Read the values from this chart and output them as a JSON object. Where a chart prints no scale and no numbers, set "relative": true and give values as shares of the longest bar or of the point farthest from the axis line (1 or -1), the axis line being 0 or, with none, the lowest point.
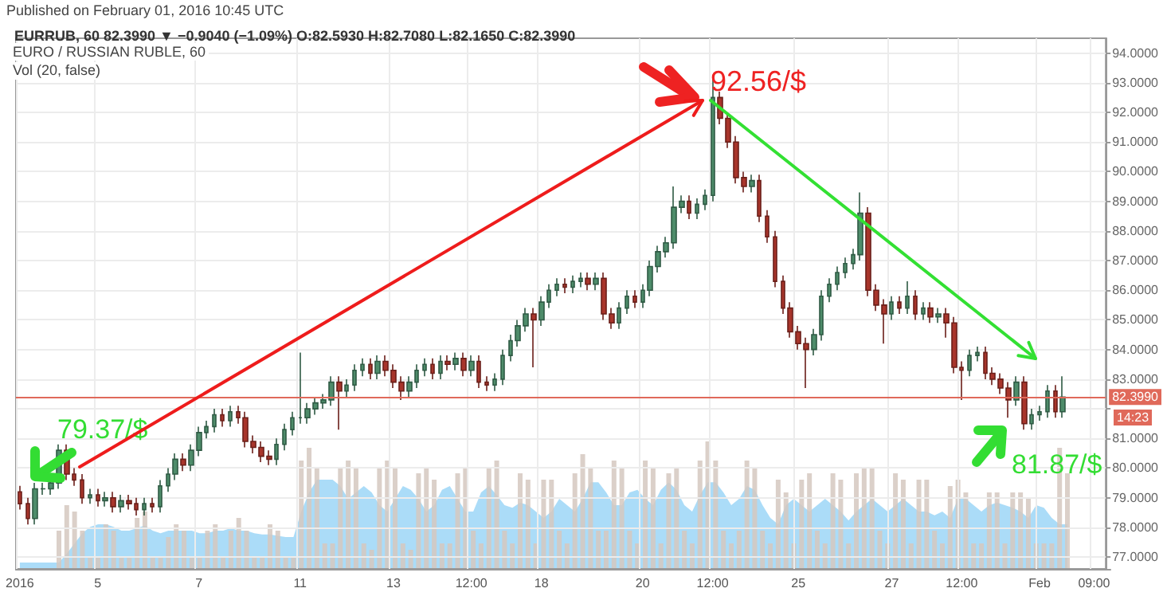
{
  "chart_data": [
    {
      "type": "candlestick",
      "title": "EURRUB, 60 82.3990 ▼ −0.9040 (−1.09%) O:82.5930 H:82.7080 L:82.1650 C:82.3990",
      "subtitle": "EURO / RUSSIAN RUBLE, 60",
      "annotations": [
        "Published on February 01, 2016 10:45 UTC",
        "92.56/$",
        "79.37/$",
        "81.87/$",
        "14:23"
      ],
      "categories": [
        "2016",
        null,
        null,
        null,
        null,
        null,
        null,
        null,
        null,
        null,
        "5",
        null,
        null,
        null,
        null,
        null,
        null,
        null,
        null,
        null,
        null,
        null,
        null,
        "7",
        null,
        null,
        null,
        null,
        null,
        null,
        null,
        null,
        null,
        null,
        null,
        null,
        "11",
        null,
        null,
        null,
        null,
        null,
        null,
        null,
        null,
        null,
        null,
        null,
        "13",
        null,
        null,
        null,
        null,
        null,
        null,
        null,
        null,
        null,
        "12:00",
        null,
        null,
        null,
        null,
        null,
        null,
        null,
        null,
        "18",
        null,
        null,
        null,
        null,
        null,
        null,
        null,
        null,
        null,
        null,
        null,
        null,
        "20",
        null,
        null,
        null,
        null,
        null,
        null,
        null,
        null,
        "12:00",
        null,
        null,
        null,
        null,
        null,
        null,
        null,
        null,
        null,
        null,
        "25",
        null,
        null,
        null,
        null,
        null,
        null,
        null,
        null,
        null,
        null,
        null,
        "27",
        null,
        null,
        null,
        null,
        null,
        null,
        null,
        null,
        "12:00",
        null,
        null,
        null,
        null,
        null,
        null,
        null,
        null,
        null,
        "Feb",
        null,
        null,
        null,
        null,
        null,
        null,
        "09:00",
        null
      ],
      "ohlc": [
        [
          79.2,
          79.4,
          78.6,
          78.8
        ],
        [
          78.8,
          79.0,
          78.1,
          78.3
        ],
        [
          78.3,
          79.5,
          78.1,
          79.3
        ],
        [
          79.3,
          79.5,
          79.1,
          79.3
        ],
        [
          79.3,
          79.7,
          79.1,
          79.5
        ],
        [
          79.5,
          80.8,
          79.3,
          80.6
        ],
        [
          80.6,
          80.8,
          79.6,
          79.8
        ],
        [
          79.8,
          80.0,
          79.4,
          79.6
        ],
        [
          79.6,
          79.8,
          78.8,
          79.0
        ],
        [
          79.0,
          79.3,
          78.8,
          79.1
        ],
        [
          79.1,
          79.3,
          78.7,
          78.9
        ],
        [
          78.9,
          79.2,
          78.7,
          79.0
        ],
        [
          79.0,
          79.2,
          78.5,
          78.7
        ],
        [
          78.7,
          79.1,
          78.5,
          78.9
        ],
        [
          78.9,
          79.1,
          78.6,
          78.8
        ],
        [
          78.8,
          79.0,
          78.4,
          78.6
        ],
        [
          78.6,
          79.0,
          78.4,
          78.8
        ],
        [
          78.8,
          79.0,
          78.5,
          78.7
        ],
        [
          78.7,
          79.6,
          78.5,
          79.4
        ],
        [
          79.4,
          80.0,
          79.2,
          79.8
        ],
        [
          79.8,
          80.5,
          79.6,
          80.3
        ],
        [
          80.3,
          80.5,
          79.9,
          80.1
        ],
        [
          80.1,
          80.8,
          79.9,
          80.6
        ],
        [
          80.6,
          81.4,
          80.4,
          81.2
        ],
        [
          81.2,
          81.6,
          81.0,
          81.4
        ],
        [
          81.4,
          82.0,
          81.2,
          81.8
        ],
        [
          81.8,
          82.0,
          81.4,
          81.6
        ],
        [
          81.6,
          82.1,
          81.4,
          81.9
        ],
        [
          81.9,
          82.1,
          81.5,
          81.7
        ],
        [
          81.7,
          81.9,
          80.7,
          80.9
        ],
        [
          80.9,
          81.1,
          80.5,
          80.7
        ],
        [
          80.7,
          80.9,
          80.2,
          80.4
        ],
        [
          80.4,
          80.6,
          80.1,
          80.3
        ],
        [
          80.3,
          81.0,
          80.1,
          80.8
        ],
        [
          80.8,
          81.5,
          80.6,
          81.3
        ],
        [
          81.3,
          81.9,
          81.1,
          81.7
        ],
        [
          81.7,
          83.9,
          81.5,
          81.7
        ],
        [
          81.7,
          82.2,
          81.5,
          82.0
        ],
        [
          82.0,
          82.4,
          81.8,
          82.2
        ],
        [
          82.2,
          82.5,
          82.0,
          82.3
        ],
        [
          82.3,
          83.1,
          82.1,
          82.9
        ],
        [
          82.9,
          83.1,
          81.3,
          82.6
        ],
        [
          82.6,
          83.0,
          82.4,
          82.8
        ],
        [
          82.8,
          83.5,
          82.6,
          83.3
        ],
        [
          83.3,
          83.7,
          83.1,
          83.5
        ],
        [
          83.5,
          83.7,
          83.0,
          83.2
        ],
        [
          83.2,
          83.8,
          83.0,
          83.6
        ],
        [
          83.6,
          83.8,
          83.1,
          83.3
        ],
        [
          83.3,
          83.5,
          82.7,
          82.9
        ],
        [
          82.9,
          83.1,
          82.3,
          82.6
        ],
        [
          82.6,
          83.1,
          82.4,
          82.9
        ],
        [
          82.9,
          83.5,
          82.7,
          83.3
        ],
        [
          83.3,
          83.7,
          83.1,
          83.5
        ],
        [
          83.5,
          83.7,
          83.0,
          83.2
        ],
        [
          83.2,
          83.8,
          83.0,
          83.6
        ],
        [
          83.6,
          83.8,
          83.3,
          83.5
        ],
        [
          83.5,
          83.9,
          83.3,
          83.7
        ],
        [
          83.7,
          83.9,
          83.1,
          83.3
        ],
        [
          83.3,
          83.8,
          83.1,
          83.6
        ],
        [
          83.6,
          83.8,
          82.7,
          82.9
        ],
        [
          82.9,
          83.1,
          82.6,
          82.8
        ],
        [
          82.8,
          83.2,
          82.6,
          83.0
        ],
        [
          83.0,
          84.0,
          82.8,
          83.8
        ],
        [
          83.8,
          84.5,
          83.6,
          84.3
        ],
        [
          84.3,
          85.0,
          84.1,
          84.8
        ],
        [
          84.8,
          85.4,
          84.6,
          85.2
        ],
        [
          85.2,
          85.4,
          83.4,
          85.0
        ],
        [
          85.0,
          85.8,
          84.8,
          85.6
        ],
        [
          85.6,
          86.2,
          85.4,
          86.0
        ],
        [
          86.0,
          86.4,
          85.8,
          86.2
        ],
        [
          86.2,
          86.4,
          85.9,
          86.1
        ],
        [
          86.1,
          86.5,
          85.9,
          86.3
        ],
        [
          86.3,
          86.6,
          86.1,
          86.4
        ],
        [
          86.4,
          86.6,
          86.0,
          86.2
        ],
        [
          86.2,
          86.6,
          86.0,
          86.4
        ],
        [
          86.4,
          86.6,
          85.0,
          85.2
        ],
        [
          85.2,
          85.4,
          84.7,
          84.9
        ],
        [
          84.9,
          85.6,
          84.7,
          85.4
        ],
        [
          85.4,
          86.0,
          85.2,
          85.8
        ],
        [
          85.8,
          86.0,
          85.4,
          85.6
        ],
        [
          85.6,
          86.2,
          85.4,
          86.0
        ],
        [
          86.0,
          87.0,
          85.8,
          86.8
        ],
        [
          86.8,
          87.5,
          86.6,
          87.3
        ],
        [
          87.3,
          87.8,
          87.1,
          87.6
        ],
        [
          87.6,
          89.5,
          87.4,
          88.8
        ],
        [
          88.8,
          89.2,
          88.6,
          89.0
        ],
        [
          89.0,
          89.2,
          88.4,
          88.6
        ],
        [
          88.6,
          89.1,
          88.4,
          88.9
        ],
        [
          88.9,
          89.4,
          88.7,
          89.2
        ],
        [
          89.2,
          93.2,
          89.0,
          92.5
        ],
        [
          92.5,
          92.7,
          91.6,
          91.8
        ],
        [
          91.8,
          92.0,
          90.8,
          91.0
        ],
        [
          91.0,
          91.2,
          89.6,
          89.8
        ],
        [
          89.8,
          90.0,
          89.3,
          89.5
        ],
        [
          89.5,
          89.9,
          89.3,
          89.7
        ],
        [
          89.7,
          89.9,
          88.3,
          88.5
        ],
        [
          88.5,
          88.7,
          87.6,
          87.8
        ],
        [
          87.8,
          88.0,
          86.1,
          86.3
        ],
        [
          86.3,
          86.5,
          85.2,
          85.4
        ],
        [
          85.4,
          85.6,
          84.4,
          84.6
        ],
        [
          84.6,
          84.8,
          84.0,
          84.2
        ],
        [
          84.2,
          84.4,
          82.7,
          84.0
        ],
        [
          84.0,
          84.7,
          83.8,
          84.5
        ],
        [
          84.5,
          86.0,
          84.3,
          85.8
        ],
        [
          85.8,
          86.4,
          85.6,
          86.2
        ],
        [
          86.2,
          86.8,
          86.0,
          86.6
        ],
        [
          86.6,
          87.1,
          86.4,
          86.9
        ],
        [
          86.9,
          87.4,
          86.7,
          87.2
        ],
        [
          87.2,
          89.3,
          87.0,
          88.6
        ],
        [
          88.6,
          88.8,
          85.8,
          86.0
        ],
        [
          86.0,
          86.2,
          85.3,
          85.5
        ],
        [
          85.5,
          85.7,
          84.2,
          85.2
        ],
        [
          85.2,
          85.8,
          85.0,
          85.6
        ],
        [
          85.6,
          85.8,
          85.2,
          85.4
        ],
        [
          85.4,
          86.3,
          85.2,
          85.8
        ],
        [
          85.8,
          86.0,
          85.0,
          85.2
        ],
        [
          85.2,
          85.6,
          85.0,
          85.4
        ],
        [
          85.4,
          85.6,
          84.9,
          85.1
        ],
        [
          85.1,
          85.4,
          84.9,
          85.2
        ],
        [
          85.2,
          85.4,
          84.4,
          84.9
        ],
        [
          84.9,
          85.1,
          83.2,
          83.4
        ],
        [
          83.4,
          83.6,
          82.3,
          83.3
        ],
        [
          83.3,
          84.0,
          83.1,
          83.8
        ],
        [
          83.8,
          84.1,
          83.6,
          83.9
        ],
        [
          83.9,
          84.1,
          83.0,
          83.2
        ],
        [
          83.2,
          83.4,
          82.8,
          83.0
        ],
        [
          83.0,
          83.2,
          82.5,
          82.7
        ],
        [
          82.7,
          82.9,
          81.7,
          82.3
        ],
        [
          82.3,
          83.1,
          82.1,
          82.9
        ],
        [
          82.9,
          83.1,
          81.3,
          81.5
        ],
        [
          81.5,
          82.0,
          81.3,
          81.8
        ],
        [
          81.8,
          82.1,
          81.6,
          81.9
        ],
        [
          81.9,
          82.8,
          81.7,
          82.6
        ],
        [
          82.6,
          82.8,
          81.7,
          81.9
        ],
        [
          81.9,
          83.1,
          81.7,
          82.399
        ],
        null,
        null,
        null,
        null,
        null
      ],
      "ylim": [
        76.6,
        94.5
      ],
      "yticks": [
        {
          "value": 77,
          "label": "77.0000"
        },
        {
          "value": 78,
          "label": "78.0000"
        },
        {
          "value": 79,
          "label": "79.0000"
        },
        {
          "value": 80,
          "label": "80.0000"
        },
        {
          "value": 81,
          "label": "81.0000"
        },
        {
          "value": 82,
          "label": null
        },
        {
          "value": 83,
          "label": "83.0000"
        },
        {
          "value": 84,
          "label": "84.0000"
        },
        {
          "value": 85,
          "label": "85.0000"
        },
        {
          "value": 86,
          "label": "86.0000"
        },
        {
          "value": 87,
          "label": "87.0000"
        },
        {
          "value": 88,
          "label": "88.0000"
        },
        {
          "value": 89,
          "label": "89.0000"
        },
        {
          "value": 90,
          "label": "90.0000"
        },
        {
          "value": 91,
          "label": "91.0000"
        },
        {
          "value": 92,
          "label": "92.0000"
        },
        {
          "value": 93,
          "label": "93.0000"
        },
        {
          "value": 94,
          "label": "94.0000"
        }
      ],
      "grid": true,
      "ref_lines": [
        {
          "axis": "y",
          "value": 82.399,
          "label": "82.3990",
          "color": "#e0695a"
        }
      ]
    },
    {
      "type": "bar",
      "relative": true,
      "title": "Vol (20, false)",
      "categories": [
        null,
        null,
        null,
        null,
        null,
        null,
        null,
        null,
        null,
        null,
        null,
        null,
        null,
        null,
        null,
        null,
        null,
        null,
        null,
        null,
        null,
        null,
        null,
        null,
        null,
        null,
        null,
        null,
        null,
        null,
        null,
        null,
        null,
        null,
        null,
        null,
        null,
        null,
        null,
        null,
        null,
        null,
        null,
        null,
        null,
        null,
        null,
        null,
        null,
        null,
        null,
        null,
        null,
        null,
        null,
        null,
        null,
        null,
        null,
        null,
        null,
        null,
        null,
        null,
        null,
        null,
        null,
        null,
        null,
        null,
        null,
        null,
        null,
        null,
        null,
        null,
        null,
        null,
        null,
        null,
        null,
        null,
        null,
        null,
        null,
        null,
        null,
        null,
        null,
        null,
        null,
        null,
        null,
        null,
        null,
        null,
        null,
        null,
        null,
        null,
        null,
        null,
        null,
        null,
        null,
        null,
        null,
        null,
        null,
        null,
        null,
        null,
        null,
        null,
        null,
        null,
        null,
        null,
        null,
        null,
        null,
        null,
        null,
        null,
        null,
        null,
        null,
        null,
        null,
        null,
        null,
        null,
        null,
        null,
        null,
        null,
        null,
        null,
        null,
        null
      ],
      "series": [
        {
          "color": "#d5c8c0",
          "values": [
            null,
            null,
            null,
            null,
            null,
            0.3,
            0.5,
            0.45,
            0.3,
            0.1,
            0.1,
            0.35,
            0.3,
            0.1,
            0.1,
            0.4,
            0.45,
            0.1,
            0.1,
            0.25,
            0.35,
            0.3,
            0.1,
            0.1,
            0.3,
            0.35,
            0.1,
            0.3,
            0.4,
            0.3,
            0.1,
            0.1,
            0.35,
            0.3,
            0.1,
            0.1,
            0.85,
            0.95,
            0.8,
            0.2,
            0.2,
            0.8,
            0.85,
            0.8,
            0.2,
            0.15,
            0.8,
            0.85,
            0.8,
            0.2,
            0.15,
            0.75,
            0.8,
            0.7,
            0.2,
            0.2,
            0.75,
            0.8,
            0.3,
            0.2,
            0.8,
            0.85,
            0.3,
            0.2,
            0.75,
            0.7,
            0.2,
            0.7,
            0.7,
            0.3,
            0.2,
            0.75,
            0.9,
            0.8,
            0.3,
            0.3,
            0.85,
            0.8,
            0.3,
            0.2,
            0.85,
            0.8,
            0.2,
            0.75,
            0.8,
            0.3,
            0.2,
            0.85,
            1.0,
            0.85,
            0.3,
            0.2,
            0.3,
            0.85,
            0.8,
            0.3,
            0.2,
            0.7,
            0.6,
            0.2,
            0.7,
            0.75,
            0.3,
            0.2,
            0.75,
            0.7,
            0.2,
            0.75,
            0.8,
            0.8,
            0.3,
            0.2,
            0.75,
            0.7,
            0.2,
            0.7,
            0.7,
            0.3,
            0.2,
            0.65,
            0.7,
            0.6,
            0.2,
            0.2,
            0.6,
            0.6,
            0.2,
            0.6,
            0.6,
            0.55,
            0.2,
            0.2,
            0.2,
            0.95,
            0.75,
            null,
            null,
            null,
            null,
            null
          ]
        },
        {
          "type": "area",
          "color": "#8fd0f5",
          "values": [
            0.05,
            0.05,
            0.05,
            0.05,
            0.05,
            0.05,
            0.12,
            0.2,
            0.28,
            0.33,
            0.35,
            0.35,
            0.33,
            0.3,
            0.3,
            0.32,
            0.34,
            0.3,
            0.28,
            0.3,
            0.3,
            0.3,
            0.3,
            0.28,
            0.28,
            0.3,
            0.3,
            0.32,
            0.3,
            0.3,
            0.28,
            0.27,
            0.27,
            0.26,
            0.25,
            0.25,
            0.45,
            0.6,
            0.7,
            0.7,
            0.7,
            0.65,
            0.55,
            0.6,
            0.65,
            0.6,
            0.5,
            0.45,
            0.55,
            0.65,
            0.62,
            0.55,
            0.45,
            0.5,
            0.62,
            0.65,
            0.55,
            0.45,
            0.45,
            0.6,
            0.65,
            0.58,
            0.5,
            0.48,
            0.52,
            0.5,
            0.45,
            0.4,
            0.45,
            0.55,
            0.5,
            0.45,
            0.55,
            0.68,
            0.68,
            0.6,
            0.5,
            0.5,
            0.6,
            0.62,
            0.55,
            0.5,
            0.62,
            0.68,
            0.62,
            0.5,
            0.45,
            0.58,
            0.68,
            0.68,
            0.6,
            0.5,
            0.55,
            0.65,
            0.62,
            0.5,
            0.4,
            0.35,
            0.5,
            0.55,
            0.5,
            0.45,
            0.5,
            0.55,
            0.5,
            0.45,
            0.38,
            0.45,
            0.5,
            0.55,
            0.5,
            0.45,
            0.5,
            0.55,
            0.5,
            0.45,
            0.45,
            0.42,
            0.45,
            0.4,
            0.55,
            0.55,
            0.5,
            0.45,
            0.5,
            0.52,
            0.5,
            0.48,
            0.45,
            0.4,
            0.5,
            0.48,
            0.4,
            0.35,
            0.35,
            null,
            null,
            null,
            null,
            null
          ]
        }
      ]
    }
  ]
}
